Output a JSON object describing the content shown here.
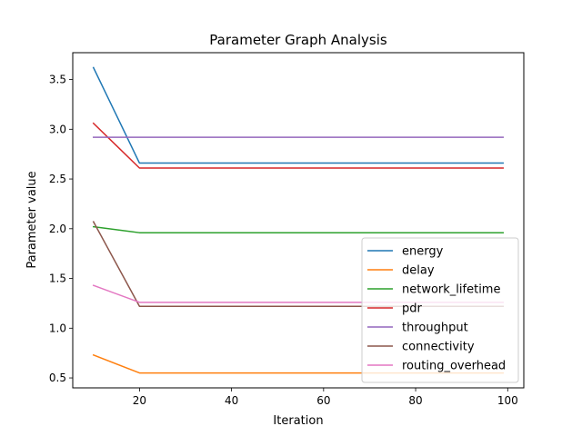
{
  "chart_data": {
    "type": "line",
    "title": "Parameter Graph Analysis",
    "xlabel": "Iteration",
    "ylabel": "Parameter value",
    "xlim": [
      5.5,
      103.5
    ],
    "ylim": [
      0.4,
      3.77
    ],
    "xticks": [
      20,
      40,
      60,
      80,
      100
    ],
    "yticks": [
      0.5,
      1.0,
      1.5,
      2.0,
      2.5,
      3.0,
      3.5
    ],
    "grid": false,
    "legend_position": "lower-right",
    "x": [
      10,
      20,
      99
    ],
    "series": [
      {
        "name": "energy",
        "color": "#1f77b4",
        "values": [
          3.62,
          2.66,
          2.66
        ]
      },
      {
        "name": "delay",
        "color": "#ff7f0e",
        "values": [
          0.73,
          0.55,
          0.55
        ]
      },
      {
        "name": "network_lifetime",
        "color": "#2ca02c",
        "values": [
          2.02,
          1.96,
          1.96
        ]
      },
      {
        "name": "pdr",
        "color": "#d62728",
        "values": [
          3.06,
          2.61,
          2.61
        ]
      },
      {
        "name": "throughput",
        "color": "#9467bd",
        "values": [
          2.92,
          2.92,
          2.92
        ]
      },
      {
        "name": "connectivity",
        "color": "#8c564b",
        "values": [
          2.07,
          1.22,
          1.22
        ]
      },
      {
        "name": "routing_overhead",
        "color": "#e377c2",
        "values": [
          1.43,
          1.26,
          1.26
        ]
      }
    ]
  }
}
